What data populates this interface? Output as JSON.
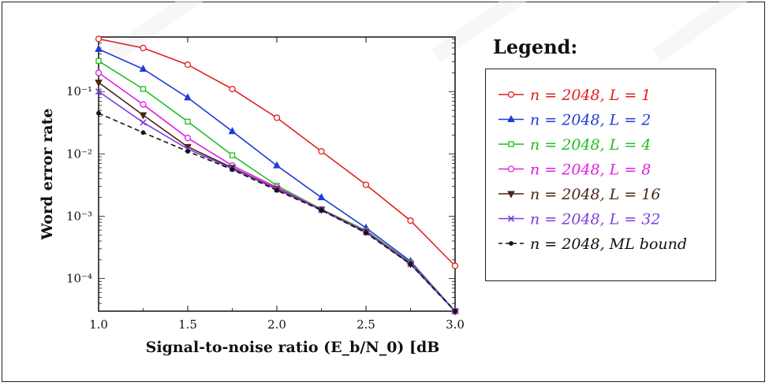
{
  "chart_data": {
    "type": "line",
    "title": "",
    "xlabel": "Signal-to-noise ratio (E_b/N_0) [dB",
    "ylabel": "Word error rate",
    "xlim": [
      1.0,
      3.0
    ],
    "ylim": [
      3e-05,
      0.75
    ],
    "yscale": "log",
    "xticks": [
      "1.0",
      "1.5",
      "2.0",
      "2.5",
      "3.0"
    ],
    "yticks": [
      {
        "label": "10⁻¹",
        "value": 0.1
      },
      {
        "label": "10⁻²",
        "value": 0.01
      },
      {
        "label": "10⁻³",
        "value": 0.001
      },
      {
        "label": "10⁻⁴",
        "value": 0.0001
      }
    ],
    "x": [
      1.0,
      1.25,
      1.5,
      1.75,
      2.0,
      2.25,
      2.5,
      2.75,
      3.0
    ],
    "legend_title": "Legend:",
    "legend_position": "right",
    "series": [
      {
        "name": "n = 2048, L = 1",
        "color": "#e0201c",
        "marker": "circle",
        "dash": false,
        "values": [
          0.7,
          0.5,
          0.27,
          0.11,
          0.038,
          0.011,
          0.0032,
          0.00085,
          0.00016
        ]
      },
      {
        "name": "n = 2048, L = 2",
        "color": "#1f3cd6",
        "marker": "triangle",
        "dash": false,
        "values": [
          0.48,
          0.23,
          0.08,
          0.023,
          0.0065,
          0.002,
          0.00065,
          0.00019,
          3e-05
        ]
      },
      {
        "name": "n = 2048, L = 4",
        "color": "#1fbf1f",
        "marker": "square",
        "dash": false,
        "values": [
          0.31,
          0.11,
          0.033,
          0.0095,
          0.0031,
          0.0013,
          0.00059,
          0.00018,
          3e-05
        ]
      },
      {
        "name": "n = 2048, L = 8",
        "color": "#e020e0",
        "marker": "circle",
        "dash": false,
        "values": [
          0.2,
          0.062,
          0.018,
          0.0065,
          0.0029,
          0.00128,
          0.00057,
          0.000175,
          3e-05
        ]
      },
      {
        "name": "n = 2048, L = 16",
        "color": "#4a2414",
        "marker": "triangle-down",
        "dash": false,
        "values": [
          0.14,
          0.042,
          0.013,
          0.006,
          0.00275,
          0.00127,
          0.00056,
          0.000172,
          3e-05
        ]
      },
      {
        "name": "n = 2048, L = 32",
        "color": "#7b3fe0",
        "marker": "x",
        "dash": false,
        "values": [
          0.1,
          0.032,
          0.012,
          0.0058,
          0.0027,
          0.00126,
          0.00055,
          0.00017,
          3e-05
        ]
      },
      {
        "name": "n = 2048, ML bound",
        "color": "#111111",
        "marker": "dot",
        "dash": true,
        "values": [
          0.045,
          0.022,
          0.011,
          0.0056,
          0.0026,
          0.00125,
          0.00054,
          0.00017,
          3e-05
        ]
      }
    ]
  }
}
